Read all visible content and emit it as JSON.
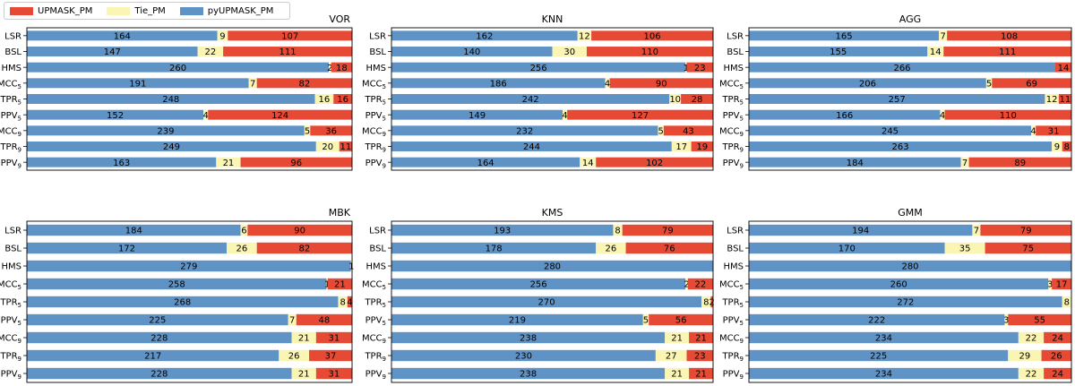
{
  "legend": [
    "UPMASK_PM",
    "Tie_PM",
    "pyUPMASK_PM"
  ],
  "colors": {
    "UPMASK_PM": "#e64a35",
    "Tie_PM": "#fbf5b3",
    "pyUPMASK_PM": "#5f93c6"
  },
  "chart_data": [
    {
      "type": "bar",
      "title": "VOR",
      "total": 280,
      "categories": [
        "LSR",
        "BSL",
        "HMS",
        "MCC5",
        "TPR5",
        "PPV5",
        "MCC9",
        "TPR9",
        "PPV9"
      ],
      "category_labels": [
        [
          "LSR",
          ""
        ],
        [
          "BSL",
          ""
        ],
        [
          "HMS",
          ""
        ],
        [
          "MCC",
          "5"
        ],
        [
          "TPR",
          "5"
        ],
        [
          "PPV",
          "5"
        ],
        [
          "MCC",
          "9"
        ],
        [
          "TPR",
          "9"
        ],
        [
          "PPV",
          "9"
        ]
      ],
      "series": [
        {
          "name": "pyUPMASK_PM",
          "values": [
            164,
            147,
            260,
            191,
            248,
            152,
            239,
            249,
            163
          ]
        },
        {
          "name": "Tie_PM",
          "values": [
            9,
            22,
            2,
            7,
            16,
            4,
            5,
            20,
            21
          ]
        },
        {
          "name": "UPMASK_PM",
          "values": [
            107,
            111,
            18,
            82,
            16,
            124,
            36,
            11,
            96
          ]
        }
      ]
    },
    {
      "type": "bar",
      "title": "KNN",
      "total": 280,
      "categories": [
        "LSR",
        "BSL",
        "HMS",
        "MCC5",
        "TPR5",
        "PPV5",
        "MCC9",
        "TPR9",
        "PPV9"
      ],
      "category_labels": [
        [
          "LSR",
          ""
        ],
        [
          "BSL",
          ""
        ],
        [
          "HMS",
          ""
        ],
        [
          "MCC",
          "5"
        ],
        [
          "TPR",
          "5"
        ],
        [
          "PPV",
          "5"
        ],
        [
          "MCC",
          "9"
        ],
        [
          "TPR",
          "9"
        ],
        [
          "PPV",
          "9"
        ]
      ],
      "series": [
        {
          "name": "pyUPMASK_PM",
          "values": [
            162,
            140,
            256,
            186,
            242,
            149,
            232,
            244,
            164
          ]
        },
        {
          "name": "Tie_PM",
          "values": [
            12,
            30,
            1,
            4,
            10,
            4,
            5,
            17,
            14
          ]
        },
        {
          "name": "UPMASK_PM",
          "values": [
            106,
            110,
            23,
            90,
            28,
            127,
            43,
            19,
            102
          ]
        }
      ]
    },
    {
      "type": "bar",
      "title": "AGG",
      "total": 280,
      "categories": [
        "LSR",
        "BSL",
        "HMS",
        "MCC5",
        "TPR5",
        "PPV5",
        "MCC9",
        "TPR9",
        "PPV9"
      ],
      "category_labels": [
        [
          "LSR",
          ""
        ],
        [
          "BSL",
          ""
        ],
        [
          "HMS",
          ""
        ],
        [
          "MCC",
          "5"
        ],
        [
          "TPR",
          "5"
        ],
        [
          "PPV",
          "5"
        ],
        [
          "MCC",
          "9"
        ],
        [
          "TPR",
          "9"
        ],
        [
          "PPV",
          "9"
        ]
      ],
      "series": [
        {
          "name": "pyUPMASK_PM",
          "values": [
            165,
            155,
            266,
            206,
            257,
            166,
            245,
            263,
            184
          ]
        },
        {
          "name": "Tie_PM",
          "values": [
            7,
            14,
            0,
            5,
            12,
            4,
            4,
            9,
            7
          ]
        },
        {
          "name": "UPMASK_PM",
          "values": [
            108,
            111,
            14,
            69,
            11,
            110,
            31,
            8,
            89
          ]
        }
      ]
    },
    {
      "type": "bar",
      "title": "MBK",
      "total": 280,
      "categories": [
        "LSR",
        "BSL",
        "HMS",
        "MCC5",
        "TPR5",
        "PPV5",
        "MCC9",
        "TPR9",
        "PPV9"
      ],
      "category_labels": [
        [
          "LSR",
          ""
        ],
        [
          "BSL",
          ""
        ],
        [
          "HMS",
          ""
        ],
        [
          "MCC",
          "5"
        ],
        [
          "TPR",
          "5"
        ],
        [
          "PPV",
          "5"
        ],
        [
          "MCC",
          "9"
        ],
        [
          "TPR",
          "9"
        ],
        [
          "PPV",
          "9"
        ]
      ],
      "series": [
        {
          "name": "pyUPMASK_PM",
          "values": [
            184,
            172,
            279,
            258,
            268,
            225,
            228,
            217,
            228
          ]
        },
        {
          "name": "Tie_PM",
          "values": [
            6,
            26,
            1,
            1,
            8,
            7,
            21,
            26,
            21
          ]
        },
        {
          "name": "UPMASK_PM",
          "values": [
            90,
            82,
            0,
            21,
            4,
            48,
            31,
            37,
            31
          ]
        }
      ]
    },
    {
      "type": "bar",
      "title": "KMS",
      "total": 280,
      "categories": [
        "LSR",
        "BSL",
        "HMS",
        "MCC5",
        "TPR5",
        "PPV5",
        "MCC9",
        "TPR9",
        "PPV9"
      ],
      "category_labels": [
        [
          "LSR",
          ""
        ],
        [
          "BSL",
          ""
        ],
        [
          "HMS",
          ""
        ],
        [
          "MCC",
          "5"
        ],
        [
          "TPR",
          "5"
        ],
        [
          "PPV",
          "5"
        ],
        [
          "MCC",
          "9"
        ],
        [
          "TPR",
          "9"
        ],
        [
          "PPV",
          "9"
        ]
      ],
      "series": [
        {
          "name": "pyUPMASK_PM",
          "values": [
            193,
            178,
            280,
            256,
            270,
            219,
            238,
            230,
            238
          ]
        },
        {
          "name": "Tie_PM",
          "values": [
            8,
            26,
            0,
            2,
            8,
            5,
            21,
            27,
            21
          ]
        },
        {
          "name": "UPMASK_PM",
          "values": [
            79,
            76,
            0,
            22,
            2,
            56,
            21,
            23,
            21
          ]
        }
      ]
    },
    {
      "type": "bar",
      "title": "GMM",
      "total": 280,
      "categories": [
        "LSR",
        "BSL",
        "HMS",
        "MCC5",
        "TPR5",
        "PPV5",
        "MCC9",
        "TPR9",
        "PPV9"
      ],
      "category_labels": [
        [
          "LSR",
          ""
        ],
        [
          "BSL",
          ""
        ],
        [
          "HMS",
          ""
        ],
        [
          "MCC",
          "5"
        ],
        [
          "TPR",
          "5"
        ],
        [
          "PPV",
          "5"
        ],
        [
          "MCC",
          "9"
        ],
        [
          "TPR",
          "9"
        ],
        [
          "PPV",
          "9"
        ]
      ],
      "series": [
        {
          "name": "pyUPMASK_PM",
          "values": [
            194,
            170,
            280,
            260,
            272,
            222,
            234,
            225,
            234
          ]
        },
        {
          "name": "Tie_PM",
          "values": [
            7,
            35,
            0,
            3,
            8,
            3,
            22,
            29,
            22
          ]
        },
        {
          "name": "UPMASK_PM",
          "values": [
            79,
            75,
            0,
            17,
            0,
            55,
            24,
            26,
            24
          ]
        }
      ]
    }
  ]
}
